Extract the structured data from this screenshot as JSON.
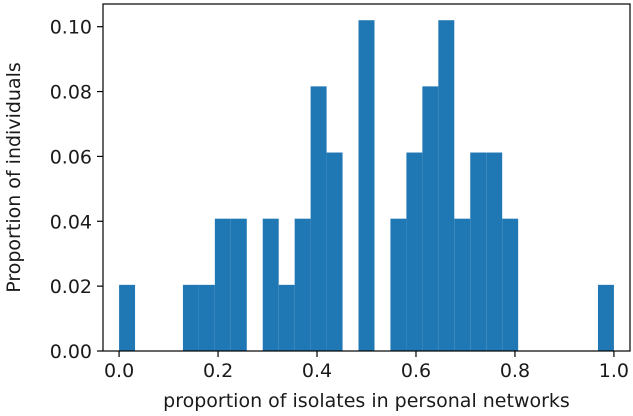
{
  "chart_data": {
    "type": "bar",
    "subtype": "histogram",
    "title": "",
    "xlabel": "proportion of isolates in personal networks",
    "ylabel": "Proportion of individuals",
    "xlim": [
      -0.0325,
      1.0325
    ],
    "ylim": [
      0,
      0.107
    ],
    "xticks": [
      "0.0",
      "0.2",
      "0.4",
      "0.6",
      "0.8",
      "1.0"
    ],
    "yticks": [
      "0.00",
      "0.02",
      "0.04",
      "0.06",
      "0.08",
      "0.10"
    ],
    "bins": 31,
    "bin_range": [
      0,
      1
    ],
    "values": [
      0.0204,
      0,
      0,
      0,
      0.0204,
      0.0204,
      0.0408,
      0.0408,
      0,
      0.0408,
      0.0204,
      0.0408,
      0.0816,
      0.0612,
      0,
      0.102,
      0,
      0.0408,
      0.0612,
      0.0816,
      0.102,
      0.0408,
      0.0612,
      0.0612,
      0.0408,
      0,
      0,
      0,
      0,
      0,
      0.0204
    ],
    "bar_color": "#1f77b4",
    "grid": false,
    "legend": "none"
  }
}
